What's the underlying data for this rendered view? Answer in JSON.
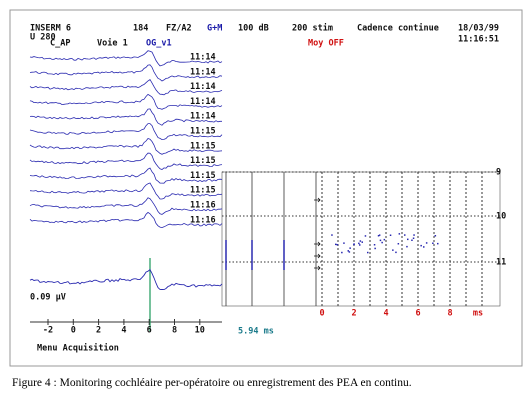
{
  "header": {
    "site": "INSERM 6",
    "number": "184",
    "montage": "FZ/A2",
    "mode": "G+M",
    "level": "100 dB",
    "stim": "200 stim",
    "cadence": "Cadence continue",
    "date": "18/03/99",
    "unit": "U 280",
    "clock": "11:16:51",
    "channel": "C_AP",
    "voie": "Voie 1",
    "ear": "OG_v1",
    "average": "Moy OFF"
  },
  "left_panel": {
    "times": [
      "11:14",
      "11:14",
      "11:14",
      "11:14",
      "11:14",
      "11:15",
      "11:15",
      "11:15",
      "11:15",
      "11:15",
      "11:16",
      "11:16"
    ],
    "amplitude": "0.09 µV",
    "axis_ticks": [
      "-2",
      "0",
      "2",
      "4",
      "6",
      "8",
      "10"
    ],
    "menu": "Menu Acquisition"
  },
  "right_panel": {
    "row_labels": [
      "9",
      "10",
      "11"
    ],
    "axis_ticks": [
      "0",
      "2",
      "4",
      "6",
      "8",
      "ms"
    ],
    "latency": "5.94 ms"
  },
  "caption": "Figure 4 : Monitoring cochléaire per-opératoire ou enregistrement des PEA en continu."
}
